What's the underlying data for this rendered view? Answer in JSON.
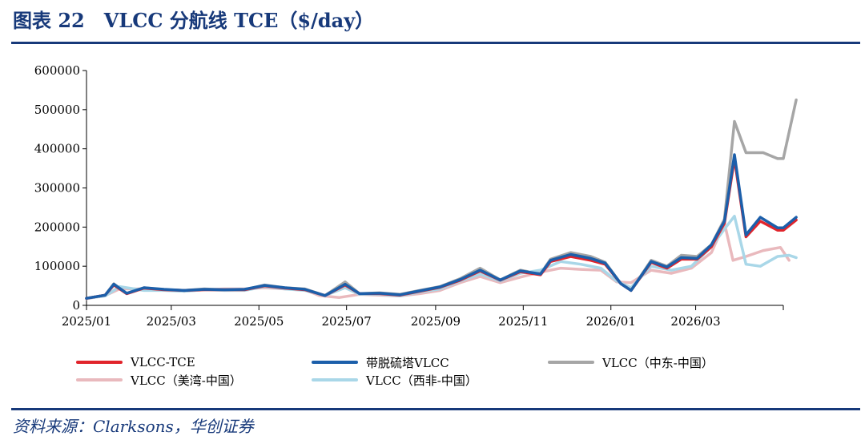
{
  "title": "图表 22　VLCC 分航线 TCE（$/day）",
  "source": "资料来源：Clarksons，华创证券",
  "chart_data": {
    "type": "line",
    "title": "",
    "xlabel": "",
    "ylabel": "",
    "ylim": [
      0,
      600000
    ],
    "yticks": [
      "0",
      "100000",
      "200000",
      "300000",
      "400000",
      "500000",
      "600000"
    ],
    "xticks": [
      "2025/01",
      "2025/03",
      "2025/05",
      "2025/07",
      "2025/09",
      "2025/11",
      "2026/01",
      "2026/03"
    ],
    "x_domain": [
      "2025/01",
      "2026/05"
    ],
    "grid": false,
    "legend_position": "bottom",
    "series": [
      {
        "name": "VLCC（美湾-中国）",
        "color": "#e9b9bd",
        "points": [
          [
            "2025-01-01",
            17000
          ],
          [
            "2025-01-14",
            25000
          ],
          [
            "2025-01-24",
            42000
          ],
          [
            "2025-02-10",
            42000
          ],
          [
            "2025-02-24",
            40000
          ],
          [
            "2025-03-10",
            36000
          ],
          [
            "2025-03-24",
            40000
          ],
          [
            "2025-04-07",
            42000
          ],
          [
            "2025-04-21",
            42000
          ],
          [
            "2025-05-05",
            45000
          ],
          [
            "2025-05-19",
            42000
          ],
          [
            "2025-06-02",
            40000
          ],
          [
            "2025-06-12",
            25000
          ],
          [
            "2025-06-26",
            20000
          ],
          [
            "2025-07-10",
            28000
          ],
          [
            "2025-07-24",
            26000
          ],
          [
            "2025-08-07",
            24000
          ],
          [
            "2025-08-21",
            30000
          ],
          [
            "2025-09-04",
            38000
          ],
          [
            "2025-09-18",
            58000
          ],
          [
            "2025-10-02",
            74000
          ],
          [
            "2025-10-16",
            58000
          ],
          [
            "2025-10-30",
            72000
          ],
          [
            "2025-11-13",
            85000
          ],
          [
            "2025-11-27",
            95000
          ],
          [
            "2025-12-11",
            92000
          ],
          [
            "2025-12-25",
            90000
          ],
          [
            "2026-01-05",
            60000
          ],
          [
            "2026-01-15",
            58000
          ],
          [
            "2026-01-29",
            90000
          ],
          [
            "2026-02-12",
            82000
          ],
          [
            "2026-02-26",
            95000
          ],
          [
            "2026-03-12",
            135000
          ],
          [
            "2026-03-21",
            210000
          ],
          [
            "2026-03-27",
            115000
          ],
          [
            "2026-04-05",
            125000
          ],
          [
            "2026-04-17",
            140000
          ],
          [
            "2026-04-29",
            148000
          ],
          [
            "2026-05-05",
            115000
          ]
        ]
      },
      {
        "name": "VLCC（中东-中国）",
        "color": "#a6a6a6",
        "points": [
          [
            "2025-01-01",
            18000
          ],
          [
            "2025-01-14",
            26000
          ],
          [
            "2025-01-20",
            55000
          ],
          [
            "2025-01-29",
            30000
          ],
          [
            "2025-02-10",
            45000
          ],
          [
            "2025-02-24",
            40000
          ],
          [
            "2025-03-10",
            38000
          ],
          [
            "2025-03-24",
            42000
          ],
          [
            "2025-04-07",
            40000
          ],
          [
            "2025-04-21",
            40000
          ],
          [
            "2025-05-05",
            52000
          ],
          [
            "2025-05-19",
            45000
          ],
          [
            "2025-06-02",
            42000
          ],
          [
            "2025-06-16",
            25000
          ],
          [
            "2025-06-30",
            60000
          ],
          [
            "2025-07-10",
            30000
          ],
          [
            "2025-07-24",
            32000
          ],
          [
            "2025-08-07",
            28000
          ],
          [
            "2025-08-21",
            38000
          ],
          [
            "2025-09-04",
            48000
          ],
          [
            "2025-09-18",
            68000
          ],
          [
            "2025-10-02",
            95000
          ],
          [
            "2025-10-16",
            65000
          ],
          [
            "2025-10-30",
            90000
          ],
          [
            "2025-11-13",
            80000
          ],
          [
            "2025-11-20",
            118000
          ],
          [
            "2025-12-04",
            135000
          ],
          [
            "2025-12-18",
            125000
          ],
          [
            "2025-12-28",
            110000
          ],
          [
            "2026-01-08",
            55000
          ],
          [
            "2026-01-15",
            38000
          ],
          [
            "2026-01-29",
            115000
          ],
          [
            "2026-02-09",
            100000
          ],
          [
            "2026-02-19",
            128000
          ],
          [
            "2026-03-02",
            125000
          ],
          [
            "2026-03-12",
            155000
          ],
          [
            "2026-03-21",
            220000
          ],
          [
            "2026-03-28",
            470000
          ],
          [
            "2026-04-05",
            390000
          ],
          [
            "2026-04-17",
            390000
          ],
          [
            "2026-04-27",
            375000
          ],
          [
            "2026-05-01",
            375000
          ],
          [
            "2026-05-10",
            525000
          ]
        ]
      },
      {
        "name": "VLCC（西非-中国）",
        "color": "#a9d7e8",
        "points": [
          [
            "2025-01-01",
            18000
          ],
          [
            "2025-01-14",
            24000
          ],
          [
            "2025-01-24",
            48000
          ],
          [
            "2025-02-10",
            38000
          ],
          [
            "2025-02-24",
            38000
          ],
          [
            "2025-03-10",
            36000
          ],
          [
            "2025-03-24",
            40000
          ],
          [
            "2025-04-07",
            38000
          ],
          [
            "2025-04-21",
            38000
          ],
          [
            "2025-05-05",
            48000
          ],
          [
            "2025-05-19",
            42000
          ],
          [
            "2025-06-02",
            38000
          ],
          [
            "2025-06-16",
            25000
          ],
          [
            "2025-06-30",
            45000
          ],
          [
            "2025-07-10",
            28000
          ],
          [
            "2025-07-24",
            28000
          ],
          [
            "2025-08-07",
            24000
          ],
          [
            "2025-08-21",
            34000
          ],
          [
            "2025-09-04",
            42000
          ],
          [
            "2025-09-18",
            62000
          ],
          [
            "2025-10-02",
            80000
          ],
          [
            "2025-10-16",
            62000
          ],
          [
            "2025-10-30",
            82000
          ],
          [
            "2025-11-13",
            90000
          ],
          [
            "2025-11-27",
            112000
          ],
          [
            "2025-12-11",
            105000
          ],
          [
            "2025-12-25",
            95000
          ],
          [
            "2026-01-05",
            62000
          ],
          [
            "2026-01-15",
            45000
          ],
          [
            "2026-01-29",
            100000
          ],
          [
            "2026-02-12",
            90000
          ],
          [
            "2026-02-26",
            100000
          ],
          [
            "2026-03-12",
            150000
          ],
          [
            "2026-03-21",
            195000
          ],
          [
            "2026-03-28",
            228000
          ],
          [
            "2026-04-05",
            105000
          ],
          [
            "2026-04-15",
            100000
          ],
          [
            "2026-04-27",
            125000
          ],
          [
            "2026-05-05",
            128000
          ],
          [
            "2026-05-10",
            122000
          ]
        ]
      },
      {
        "name": "VLCC-TCE",
        "color": "#e1242b",
        "points": [
          [
            "2025-01-01",
            18000
          ],
          [
            "2025-01-14",
            26000
          ],
          [
            "2025-01-20",
            52000
          ],
          [
            "2025-01-29",
            30000
          ],
          [
            "2025-02-10",
            44000
          ],
          [
            "2025-02-24",
            40000
          ],
          [
            "2025-03-10",
            38000
          ],
          [
            "2025-03-24",
            40000
          ],
          [
            "2025-04-07",
            40000
          ],
          [
            "2025-04-21",
            40000
          ],
          [
            "2025-05-05",
            50000
          ],
          [
            "2025-05-19",
            44000
          ],
          [
            "2025-06-02",
            40000
          ],
          [
            "2025-06-16",
            25000
          ],
          [
            "2025-06-30",
            52000
          ],
          [
            "2025-07-10",
            30000
          ],
          [
            "2025-07-24",
            30000
          ],
          [
            "2025-08-07",
            26000
          ],
          [
            "2025-08-21",
            36000
          ],
          [
            "2025-09-04",
            46000
          ],
          [
            "2025-09-18",
            64000
          ],
          [
            "2025-10-02",
            88000
          ],
          [
            "2025-10-16",
            64000
          ],
          [
            "2025-10-30",
            86000
          ],
          [
            "2025-11-13",
            78000
          ],
          [
            "2025-11-20",
            112000
          ],
          [
            "2025-12-04",
            125000
          ],
          [
            "2025-12-18",
            115000
          ],
          [
            "2025-12-28",
            105000
          ],
          [
            "2026-01-08",
            55000
          ],
          [
            "2026-01-15",
            38000
          ],
          [
            "2026-01-29",
            110000
          ],
          [
            "2026-02-09",
            95000
          ],
          [
            "2026-02-19",
            118000
          ],
          [
            "2026-03-02",
            118000
          ],
          [
            "2026-03-12",
            150000
          ],
          [
            "2026-03-21",
            210000
          ],
          [
            "2026-03-28",
            375000
          ],
          [
            "2026-04-05",
            175000
          ],
          [
            "2026-04-15",
            215000
          ],
          [
            "2026-04-27",
            192000
          ],
          [
            "2026-05-01",
            192000
          ],
          [
            "2026-05-10",
            218000
          ]
        ]
      },
      {
        "name": "带脱硫塔VLCC",
        "color": "#1c5faa",
        "points": [
          [
            "2025-01-01",
            18000
          ],
          [
            "2025-01-14",
            26000
          ],
          [
            "2025-01-20",
            54000
          ],
          [
            "2025-01-29",
            31000
          ],
          [
            "2025-02-10",
            45000
          ],
          [
            "2025-02-24",
            41000
          ],
          [
            "2025-03-10",
            38000
          ],
          [
            "2025-03-24",
            41000
          ],
          [
            "2025-04-07",
            40000
          ],
          [
            "2025-04-21",
            41000
          ],
          [
            "2025-05-05",
            51000
          ],
          [
            "2025-05-19",
            45000
          ],
          [
            "2025-06-02",
            41000
          ],
          [
            "2025-06-16",
            25000
          ],
          [
            "2025-06-30",
            54000
          ],
          [
            "2025-07-10",
            30000
          ],
          [
            "2025-07-24",
            31000
          ],
          [
            "2025-08-07",
            27000
          ],
          [
            "2025-08-21",
            37000
          ],
          [
            "2025-09-04",
            47000
          ],
          [
            "2025-09-18",
            66000
          ],
          [
            "2025-10-02",
            90000
          ],
          [
            "2025-10-16",
            65000
          ],
          [
            "2025-10-30",
            88000
          ],
          [
            "2025-11-13",
            80000
          ],
          [
            "2025-11-20",
            115000
          ],
          [
            "2025-12-04",
            130000
          ],
          [
            "2025-12-18",
            120000
          ],
          [
            "2025-12-28",
            108000
          ],
          [
            "2026-01-08",
            55000
          ],
          [
            "2026-01-15",
            38000
          ],
          [
            "2026-01-29",
            112000
          ],
          [
            "2026-02-09",
            98000
          ],
          [
            "2026-02-19",
            122000
          ],
          [
            "2026-03-02",
            120000
          ],
          [
            "2026-03-12",
            155000
          ],
          [
            "2026-03-21",
            215000
          ],
          [
            "2026-03-28",
            385000
          ],
          [
            "2026-04-05",
            180000
          ],
          [
            "2026-04-15",
            225000
          ],
          [
            "2026-04-27",
            198000
          ],
          [
            "2026-05-01",
            198000
          ],
          [
            "2026-05-10",
            225000
          ]
        ]
      }
    ],
    "legend": [
      {
        "name": "VLCC-TCE",
        "color": "#e1242b"
      },
      {
        "name": "带脱硫塔VLCC",
        "color": "#1c5faa"
      },
      {
        "name": "VLCC（中东-中国）",
        "color": "#a6a6a6"
      },
      {
        "name": "VLCC（美湾-中国）",
        "color": "#e9b9bd"
      },
      {
        "name": "VLCC（西非-中国）",
        "color": "#a9d7e8"
      }
    ]
  }
}
